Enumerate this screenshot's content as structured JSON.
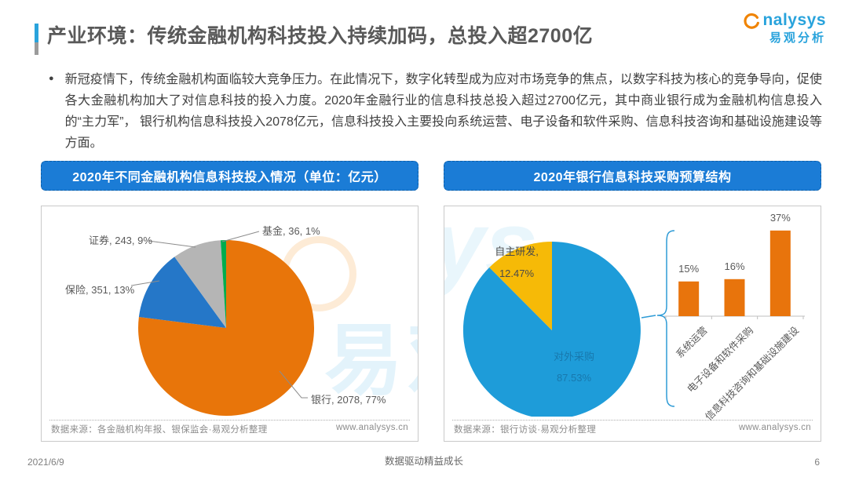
{
  "page": {
    "title": "产业环境：传统金融机构科技投入持续加码，总投入超2700亿",
    "bullet": "●",
    "intro_text": "新冠疫情下，传统金融机构面临较大竞争压力。在此情况下，数字化转型成为应对市场竞争的焦点，以数字科技为核心的竞争导向，促使各大金融机构加大了对信息科技的投入力度。2020年金融行业的信息科技总投入超过2700亿元，其中商业银行成为金融机构信息投入的“主力军”， 银行机构信息科技投入2078亿元，信息科技投入主要投向系统运营、电子设备和软件采购、信息科技咨询和基础设施建设等方面。",
    "logo": {
      "brand": "analysys",
      "brand_cn": "易观分析"
    },
    "watermark": {
      "cn": "易观",
      "en": "ys"
    },
    "footer": {
      "date": "2021/6/9",
      "slogan": "数据驱动精益成长",
      "page_number": "6"
    }
  },
  "left_panel": {
    "header": "2020年不同金融机构信息科技投入情况（单位：亿元）",
    "source": "数据来源：各金融机构年报、银保监会·易观分析整理",
    "site": "www.analysys.cn"
  },
  "right_panel": {
    "header": "2020年银行信息科技采购预算结构",
    "source": "数据来源：银行访谈·易观分析整理",
    "site": "www.analysys.cn"
  },
  "colors": {
    "header_bar": "#1B7CD6",
    "logo_blue": "#29A3DC",
    "logo_orange": "#F08300",
    "title_gray": "#595959",
    "leader_line": "#8C8C8C",
    "brace_blue": "#2E9BD6",
    "axis_gray": "#BFBFBF"
  },
  "chart_data": [
    {
      "id": "left-pie",
      "type": "pie",
      "title": "2020年不同金融机构信息科技投入情况（单位：亿元）",
      "unit": "亿元",
      "start_angle": "12点钟方向",
      "direction": "clockwise",
      "slices": [
        {
          "label": "银行",
          "value": 2078,
          "pct": 77,
          "color": "#E8750A"
        },
        {
          "label": "保险",
          "value": 351,
          "pct": 13,
          "color": "#2577C8"
        },
        {
          "label": "证券",
          "value": 243,
          "pct": 9,
          "color": "#B5B5B5"
        },
        {
          "label": "基金",
          "value": 36,
          "pct": 1,
          "color": "#00AC4E"
        }
      ]
    },
    {
      "id": "right-pie",
      "type": "pie",
      "title": "2020年银行信息科技采购预算结构",
      "direction": "clockwise",
      "slices": [
        {
          "label": "对外采购",
          "pct": 87.53,
          "color": "#1E9CD9",
          "label_color": "#1878AD"
        },
        {
          "label": "自主研发",
          "pct": 12.47,
          "color": "#F6BA07",
          "label_color": "#4A4A4A"
        }
      ]
    },
    {
      "id": "right-bars",
      "type": "bar",
      "categories": [
        "系统运营",
        "电子设备和软件采购",
        "信息科技咨询和基础设施建设"
      ],
      "values": [
        15,
        16,
        37
      ],
      "unit": "%",
      "bar_color": "#E8740C",
      "value_label_color": "#595959"
    }
  ]
}
